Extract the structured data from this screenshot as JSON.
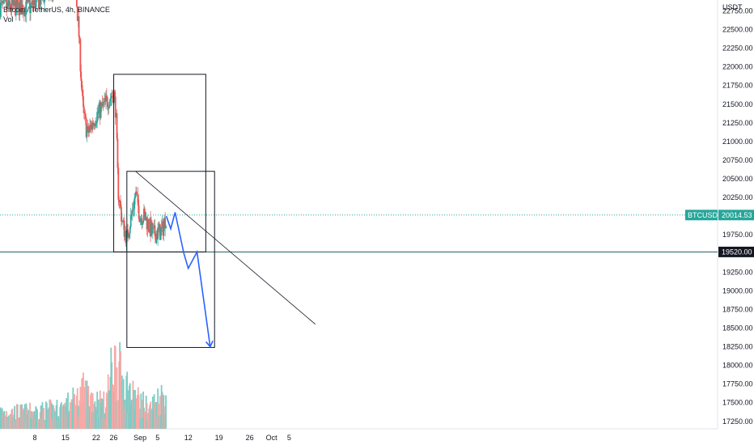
{
  "legend": {
    "symbol_title": "Bitcoin / TetherUS, 4h, BINANCE",
    "volume_label": "Vol"
  },
  "price_axis": {
    "currency": "USDT",
    "ticks": [
      "22750.00",
      "22500.00",
      "22250.00",
      "22000.00",
      "21750.00",
      "21500.00",
      "21250.00",
      "21000.00",
      "20750.00",
      "20500.00",
      "20250.00",
      "19750.00",
      "19250.00",
      "19000.00",
      "18750.00",
      "18500.00",
      "18250.00",
      "18000.00",
      "17750.00",
      "17500.00",
      "17250.00"
    ]
  },
  "price_labels": {
    "symbol_tag": "BTCUSDT",
    "last_price": "20014.53",
    "support_price": "19520.00"
  },
  "colors": {
    "up": "#26a69a",
    "down": "#ef5350",
    "vol_up": "#80cbc4",
    "vol_down": "#f7a9a7",
    "last_price_line": "#26a69a",
    "support_line": "#1f5e55",
    "projection": "#2962ff",
    "drawing": "#131722"
  },
  "chart_data": {
    "type": "candlestick",
    "title": "Bitcoin / TetherUS, 4h, BINANCE",
    "interval": "4h",
    "x_ticks": [
      "8",
      "15",
      "22",
      "26",
      "Sep",
      "5",
      "12",
      "19",
      "26",
      "Oct",
      "5"
    ],
    "y_range": [
      17150,
      22950
    ],
    "last_price": 20014.53,
    "horizontal_line": 19520.0,
    "price_path": [
      {
        "date": "2022-08-07",
        "price": 22800
      },
      {
        "date": "2022-08-10",
        "price": 22950
      },
      {
        "date": "2022-08-14",
        "price": 23100
      },
      {
        "date": "2022-08-17",
        "price": 23300
      },
      {
        "date": "2022-08-18",
        "price": 22500
      },
      {
        "date": "2022-08-19",
        "price": 21400
      },
      {
        "date": "2022-08-20",
        "price": 21100
      },
      {
        "date": "2022-08-22",
        "price": 21350
      },
      {
        "date": "2022-08-24",
        "price": 21500
      },
      {
        "date": "2022-08-26",
        "price": 21650
      },
      {
        "date": "2022-08-26T12:00",
        "price": 21400
      },
      {
        "date": "2022-08-27",
        "price": 20350
      },
      {
        "date": "2022-08-28",
        "price": 19900
      },
      {
        "date": "2022-08-29",
        "price": 19700
      },
      {
        "date": "2022-08-31",
        "price": 20300
      },
      {
        "date": "2022-09-01",
        "price": 20000
      },
      {
        "date": "2022-09-02",
        "price": 20000
      },
      {
        "date": "2022-09-04",
        "price": 19750
      },
      {
        "date": "2022-09-06",
        "price": 19800
      },
      {
        "date": "2022-09-07",
        "price": 20014
      }
    ],
    "volume_path": [
      {
        "date": "2022-08-07",
        "value": 0.25
      },
      {
        "date": "2022-08-14",
        "value": 0.3
      },
      {
        "date": "2022-08-18",
        "value": 0.45
      },
      {
        "date": "2022-08-19",
        "value": 0.55
      },
      {
        "date": "2022-08-24",
        "value": 0.35
      },
      {
        "date": "2022-08-26",
        "value": 1.0
      },
      {
        "date": "2022-08-30",
        "value": 0.5
      },
      {
        "date": "2022-09-03",
        "value": 0.3
      },
      {
        "date": "2022-09-07",
        "value": 0.55
      }
    ],
    "drawings": {
      "box_upper": {
        "from": "2022-08-26",
        "to": "2022-09-16",
        "price_top": 21900,
        "price_bottom": 19520
      },
      "box_lower": {
        "from": "2022-08-29",
        "to": "2022-09-18",
        "price_top": 20600,
        "price_bottom": 18240
      },
      "trendline": {
        "from": {
          "date": "2022-08-31",
          "price": 20600
        },
        "to": {
          "date": "2022-10-11",
          "price": 18550
        }
      },
      "projection": [
        {
          "date": "2022-09-07",
          "price": 20000
        },
        {
          "date": "2022-09-08",
          "price": 19830
        },
        {
          "date": "2022-09-09",
          "price": 20050
        },
        {
          "date": "2022-09-11",
          "price": 19500
        },
        {
          "date": "2022-09-12",
          "price": 19300
        },
        {
          "date": "2022-09-14",
          "price": 19520
        },
        {
          "date": "2022-09-17",
          "price": 18250
        }
      ]
    }
  }
}
